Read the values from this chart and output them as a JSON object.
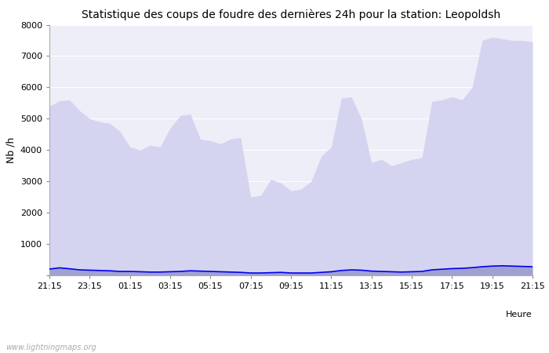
{
  "title": "Statistique des coups de foudre des dernières 24h pour la station: Leopoldsh",
  "xlabel": "Heure",
  "ylabel": "Nb /h",
  "xlabels": [
    "21:15",
    "23:15",
    "01:15",
    "03:15",
    "05:15",
    "07:15",
    "09:15",
    "11:15",
    "13:15",
    "15:15",
    "17:15",
    "19:15",
    "21:15"
  ],
  "ylim": [
    0,
    8000
  ],
  "yticks": [
    0,
    1000,
    2000,
    3000,
    4000,
    5000,
    6000,
    7000,
    8000
  ],
  "background_color": "#ffffff",
  "plot_bg_color": "#eeeef8",
  "total_foudre_color": "#d4d4f0",
  "leopoldsh_color": "#9999cc",
  "moyenne_color": "#0000ee",
  "watermark": "www.lightningmaps.org",
  "x": [
    0,
    1,
    2,
    3,
    4,
    5,
    6,
    7,
    8,
    9,
    10,
    11,
    12,
    13,
    14,
    15,
    16,
    17,
    18,
    19,
    20,
    21,
    22,
    23,
    24,
    25,
    26,
    27,
    28,
    29,
    30,
    31,
    32,
    33,
    34,
    35,
    36,
    37,
    38,
    39,
    40,
    41,
    42,
    43,
    44,
    45,
    46,
    47,
    48
  ],
  "total_foudre_y": [
    5400,
    5570,
    5600,
    5260,
    5000,
    4900,
    4850,
    4600,
    4100,
    4000,
    4150,
    4100,
    4700,
    5100,
    5150,
    4350,
    4300,
    4200,
    4350,
    4400,
    2500,
    2550,
    3060,
    2950,
    2700,
    2750,
    3000,
    3800,
    4100,
    5650,
    5700,
    5000,
    3600,
    3700,
    3500,
    3600,
    3700,
    3750,
    5550,
    5600,
    5700,
    5600,
    6000,
    7500,
    7600,
    7550,
    7500,
    7500,
    7450
  ],
  "leopoldsh_y": [
    200,
    250,
    220,
    180,
    170,
    160,
    150,
    130,
    130,
    120,
    110,
    110,
    120,
    130,
    150,
    140,
    130,
    120,
    110,
    100,
    80,
    80,
    90,
    100,
    80,
    80,
    80,
    100,
    120,
    160,
    180,
    170,
    140,
    130,
    120,
    110,
    120,
    130,
    180,
    200,
    220,
    230,
    250,
    280,
    300,
    310,
    300,
    290,
    280
  ],
  "moyenne_y": [
    200,
    240,
    210,
    175,
    165,
    155,
    145,
    125,
    125,
    115,
    105,
    105,
    115,
    125,
    145,
    135,
    125,
    115,
    105,
    95,
    75,
    75,
    85,
    95,
    75,
    75,
    75,
    95,
    115,
    155,
    175,
    165,
    135,
    125,
    115,
    105,
    115,
    125,
    175,
    195,
    215,
    225,
    245,
    275,
    295,
    305,
    295,
    285,
    275
  ]
}
